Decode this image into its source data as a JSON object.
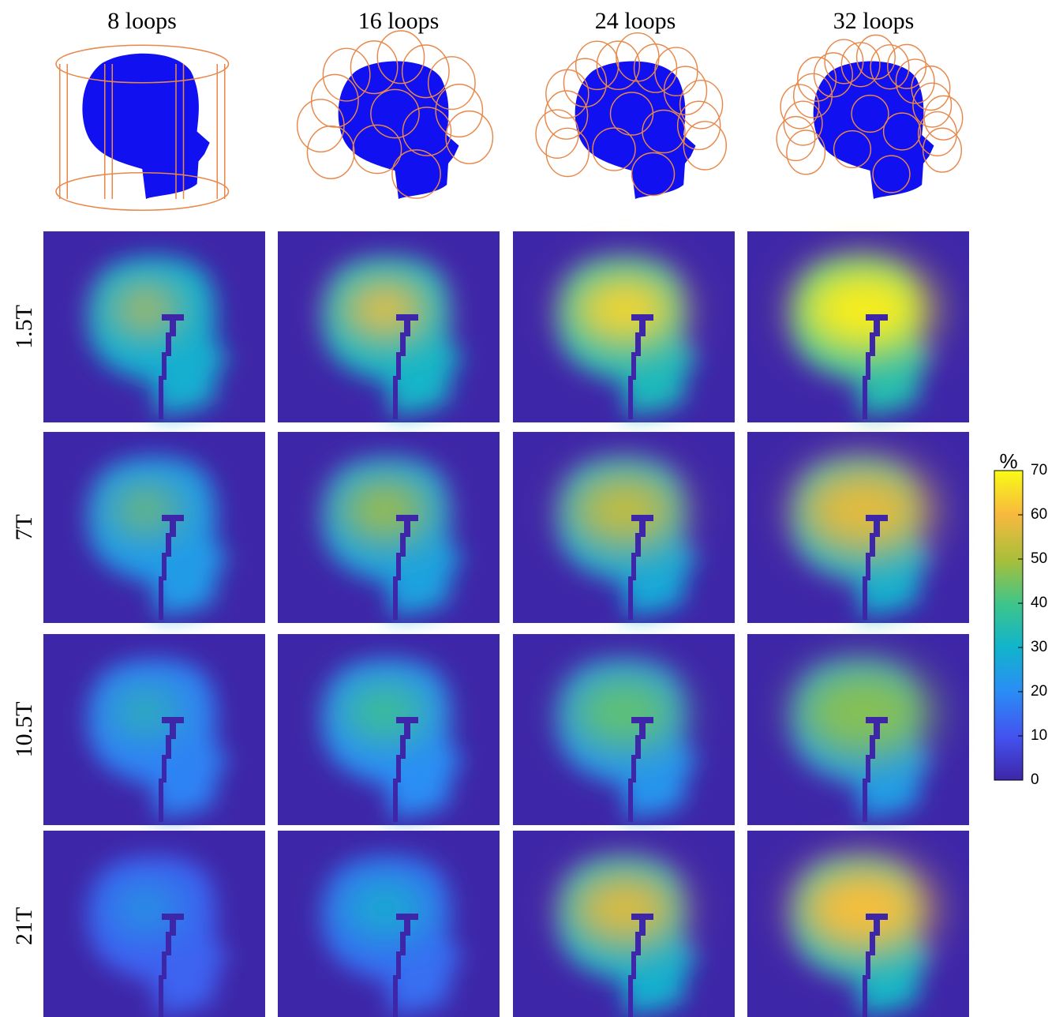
{
  "columns": [
    "8 loops",
    "16 loops",
    "24 loops",
    "32 loops"
  ],
  "rows": [
    "1.5T",
    "7T",
    "10.5T",
    "21T"
  ],
  "colorbar": {
    "label": "%",
    "lim": [
      0,
      70
    ],
    "ticks": [
      0,
      10,
      20,
      30,
      40,
      50,
      60,
      70
    ]
  }
}
